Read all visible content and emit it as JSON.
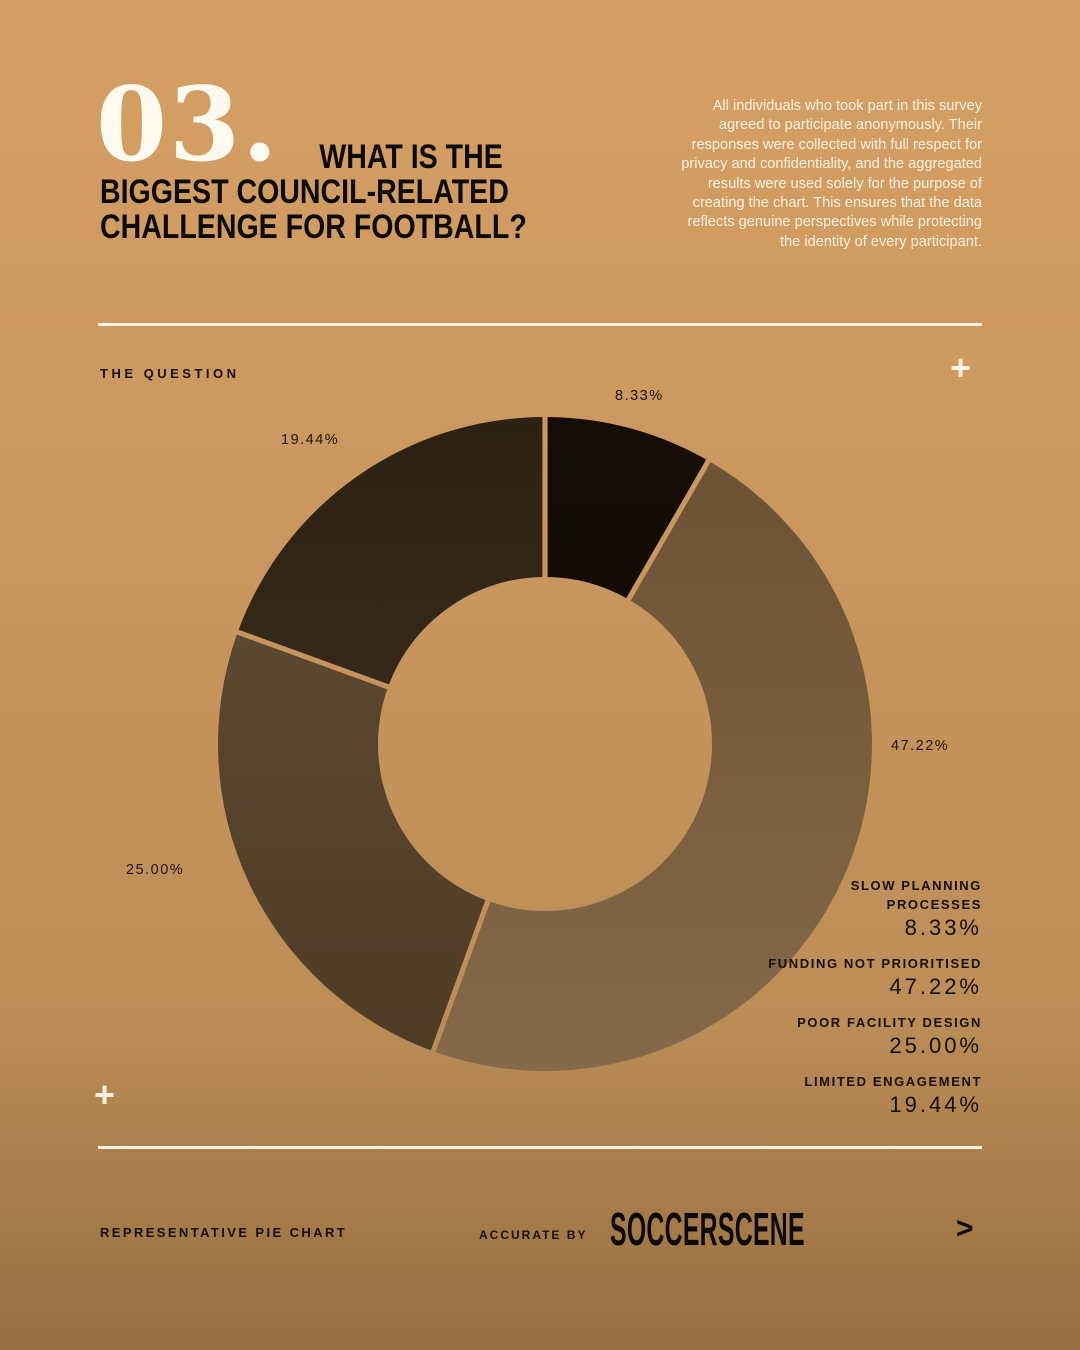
{
  "page": {
    "colors": {
      "bg_top": "#d5a065",
      "bg_mid": "#c8965e",
      "bg_low": "#bd8e58",
      "bg_bottom": "#966f41",
      "ink": "#120d07",
      "cream": "#f9f1e0",
      "white": "#fffaf0"
    }
  },
  "header": {
    "number": "03.",
    "title_lines": [
      "WHAT IS THE",
      "BIGGEST COUNCIL-RELATED",
      "CHALLENGE FOR FOOTBALL?"
    ],
    "disclaimer": "All individuals who took part in this survey agreed to participate anonymously. Their responses were collected with full respect for privacy and confidentiality, and the aggregated results were used solely for the purpose of creating the chart. This ensures that the data reflects genuine perspectives while protecting the identity of every participant."
  },
  "section": {
    "eyebrow": "THE QUESTION",
    "plus_top": "+",
    "plus_bottom": "+"
  },
  "chart_data": {
    "type": "pie",
    "donut": true,
    "start_angle_deg": 0,
    "direction": "clockwise",
    "title": "WHAT IS THE BIGGEST COUNCIL-RELATED CHALLENGE FOR FOOTBALL?",
    "slices": [
      {
        "label": "SLOW PLANNING PROCESSES",
        "legend_lines": [
          "SLOW PLANNING",
          "PROCESSES"
        ],
        "value": 8.33,
        "pct_label": "8.33%",
        "colors": [
          "#160e06",
          "#0c0703"
        ]
      },
      {
        "label": "FUNDING NOT PRIORITISED",
        "legend_lines": [
          "FUNDING NOT PRIORITISED"
        ],
        "value": 47.22,
        "pct_label": "47.22%",
        "colors": [
          "#6b5133",
          "#84694a"
        ]
      },
      {
        "label": "POOR FACILITY DESIGN",
        "legend_lines": [
          "POOR FACILITY DESIGN"
        ],
        "value": 25.0,
        "pct_label": "25.00%",
        "colors": [
          "#614e36",
          "#4e3b24"
        ]
      },
      {
        "label": "LIMITED ENGAGEMENT",
        "legend_lines": [
          "LIMITED ENGAGEMENT"
        ],
        "value": 19.44,
        "pct_label": "19.44%",
        "colors": [
          "#2c2113",
          "#443522"
        ]
      }
    ]
  },
  "footer": {
    "left_label": "REPRESENTATIVE PIE CHART",
    "accurate_by": "ACCURATE BY",
    "brand": "SOCCERSCENE",
    "arrow": ">"
  }
}
